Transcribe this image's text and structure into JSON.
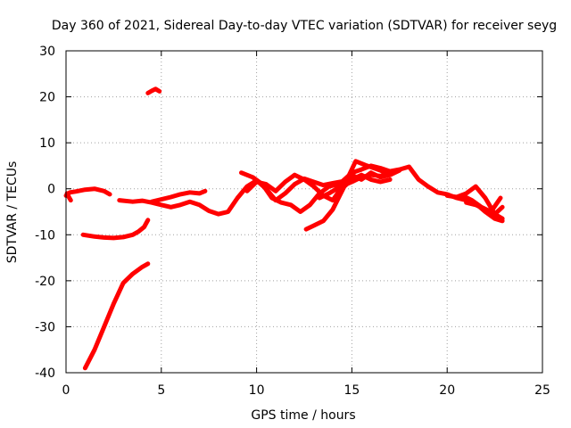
{
  "chart_data": {
    "type": "line",
    "title": "Day 360 of 2021, Sidereal Day-to-day VTEC variation (SDTVAR) for receiver seyg",
    "xlabel": "GPS time / hours",
    "ylabel": "SDTVAR / TECUs",
    "xlim": [
      0,
      25
    ],
    "ylim": [
      -40,
      30
    ],
    "xticks": [
      0,
      5,
      10,
      15,
      20,
      25
    ],
    "yticks": [
      -40,
      -30,
      -20,
      -10,
      0,
      10,
      20,
      30
    ],
    "grid": true,
    "color": "#ff0000",
    "series": [
      {
        "name": "trace-1",
        "x": [
          0.0,
          0.2,
          0.5,
          1.0,
          1.5,
          2.0,
          2.3
        ],
        "y": [
          -1.5,
          -0.8,
          -0.6,
          -0.2,
          0.0,
          -0.5,
          -1.2
        ]
      },
      {
        "name": "trace-2",
        "x": [
          0.05,
          0.15,
          0.25
        ],
        "y": [
          -1.0,
          -1.8,
          -2.5
        ]
      },
      {
        "name": "trace-3",
        "x": [
          0.9,
          1.5,
          2.0,
          2.5,
          3.0,
          3.5,
          3.8,
          4.1,
          4.3
        ],
        "y": [
          -10.0,
          -10.4,
          -10.6,
          -10.7,
          -10.5,
          -10.0,
          -9.3,
          -8.3,
          -6.8
        ]
      },
      {
        "name": "trace-4",
        "x": [
          1.0,
          1.5,
          2.0,
          2.5,
          3.0,
          3.5,
          4.0,
          4.3
        ],
        "y": [
          -39.0,
          -35.0,
          -30.0,
          -25.0,
          -20.5,
          -18.5,
          -17.0,
          -16.3
        ]
      },
      {
        "name": "trace-5",
        "x": [
          4.3,
          4.5,
          4.7,
          4.9
        ],
        "y": [
          20.8,
          21.3,
          21.7,
          21.2
        ]
      },
      {
        "name": "trace-6",
        "x": [
          2.8,
          3.5,
          4.0,
          4.5,
          5.0,
          5.5,
          6.0,
          6.5,
          7.0,
          7.5,
          8.0,
          8.5,
          9.0,
          9.5,
          10.0,
          10.5,
          11.0,
          11.5,
          12.0,
          12.5,
          13.0,
          13.5,
          14.0,
          14.5,
          15.0,
          15.5,
          16.0,
          16.5,
          17.0,
          17.5,
          18.0,
          18.5,
          19.0,
          19.5,
          20.0,
          20.5,
          21.0,
          21.5,
          22.0,
          22.5,
          22.9
        ],
        "y": [
          -2.5,
          -2.8,
          -2.6,
          -3.0,
          -3.5,
          -4.0,
          -3.5,
          -2.8,
          -3.5,
          -4.8,
          -5.5,
          -5.0,
          -2.0,
          0.5,
          1.8,
          0.0,
          -2.5,
          -1.0,
          1.0,
          2.2,
          1.5,
          0.8,
          1.2,
          1.6,
          3.5,
          4.2,
          5.0,
          4.5,
          3.8,
          4.2,
          4.8,
          2.0,
          0.5,
          -0.8,
          -1.2,
          -2.0,
          -2.5,
          -3.2,
          -5.0,
          -6.5,
          -7.0
        ]
      },
      {
        "name": "trace-7",
        "x": [
          4.5,
          5.5,
          6.0,
          6.5,
          7.0,
          7.3
        ],
        "y": [
          -2.8,
          -1.8,
          -1.2,
          -0.8,
          -1.0,
          -0.5
        ]
      },
      {
        "name": "trace-8",
        "x": [
          9.2,
          9.8,
          10.3,
          10.8,
          11.3,
          11.8,
          12.3,
          12.8,
          13.3,
          13.8,
          14.3,
          14.8,
          15.2,
          15.8,
          16.5,
          17.0
        ],
        "y": [
          3.5,
          2.5,
          1.0,
          -2.0,
          -3.0,
          -3.5,
          -5.0,
          -3.5,
          -1.0,
          0.5,
          1.0,
          2.5,
          6.0,
          5.0,
          4.0,
          3.0
        ]
      },
      {
        "name": "trace-9",
        "x": [
          9.5,
          10.0,
          10.5,
          11.0,
          11.5,
          12.0,
          12.5,
          13.0,
          13.5,
          14.0,
          14.5,
          15.0,
          15.5,
          16.0,
          16.5,
          17.0,
          17.5
        ],
        "y": [
          -0.5,
          1.5,
          1.0,
          -0.5,
          1.5,
          3.0,
          2.0,
          0.5,
          -1.5,
          -2.5,
          0.5,
          3.0,
          2.0,
          3.5,
          2.5,
          3.0,
          4.0
        ]
      },
      {
        "name": "trace-10",
        "x": [
          12.6,
          13.0,
          13.5,
          14.0,
          14.3,
          14.6,
          15.0,
          15.5,
          16.0,
          16.5,
          17.0
        ],
        "y": [
          -8.8,
          -8.0,
          -7.0,
          -4.5,
          -2.0,
          0.5,
          2.0,
          3.0,
          2.0,
          1.5,
          2.0
        ]
      },
      {
        "name": "trace-11",
        "x": [
          13.3,
          13.8,
          14.2,
          14.6,
          15.0,
          15.5,
          16.0,
          16.5,
          17.0
        ],
        "y": [
          -2.0,
          -1.0,
          0.0,
          0.8,
          1.5,
          2.5,
          3.0,
          2.8,
          3.2
        ]
      },
      {
        "name": "trace-12",
        "x": [
          20.0,
          20.5,
          21.0,
          21.5,
          22.0,
          22.5,
          22.9
        ],
        "y": [
          -1.5,
          -1.8,
          -1.0,
          0.5,
          -2.0,
          -5.5,
          -6.5
        ]
      },
      {
        "name": "trace-13",
        "x": [
          20.8,
          21.3,
          21.8,
          22.3,
          22.8
        ],
        "y": [
          -1.5,
          -2.5,
          -4.0,
          -5.0,
          -2.0
        ]
      },
      {
        "name": "trace-14",
        "x": [
          21.0,
          21.5,
          22.0,
          22.5,
          22.9
        ],
        "y": [
          -3.0,
          -3.5,
          -4.5,
          -5.5,
          -4.0
        ]
      }
    ]
  }
}
